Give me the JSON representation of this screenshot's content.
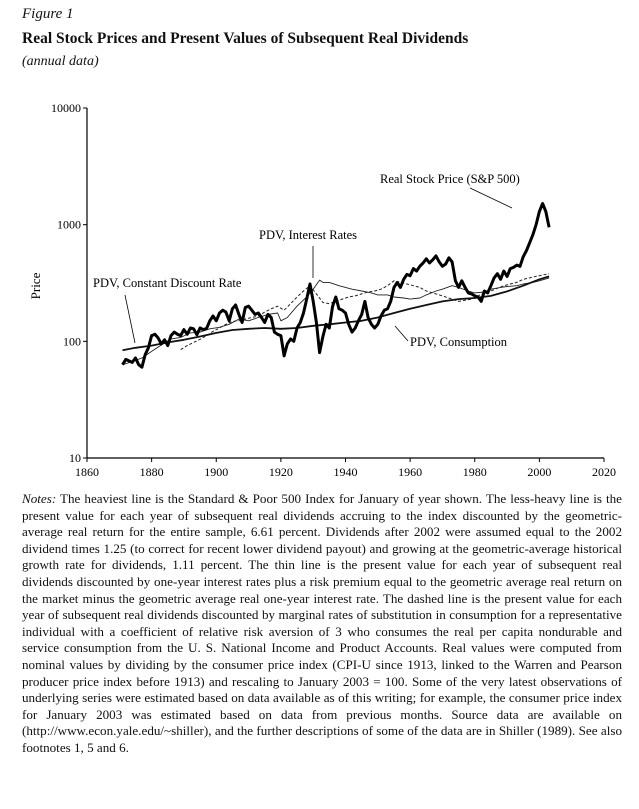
{
  "figure": {
    "label": "Figure 1",
    "title": "Real Stock Prices and Present Values of Subsequent Real Dividends",
    "subtitle": "(annual data)"
  },
  "chart_data": {
    "type": "line",
    "y_scale": "log",
    "xlim": [
      1860,
      2020
    ],
    "ylim": [
      10,
      10000
    ],
    "x_ticks": [
      "1860",
      "1880",
      "1900",
      "1920",
      "1940",
      "1960",
      "1980",
      "2000",
      "2020"
    ],
    "y_ticks": [
      "10",
      "100",
      "1000",
      "10000"
    ],
    "ylabel": "Price",
    "xlabel": "",
    "grid": false,
    "legend": "none",
    "annotations": [
      {
        "text": "Real Stock Price (S&P 500)",
        "series": "Real Stock Price (S&P 500)"
      },
      {
        "text": "PDV, Interest Rates",
        "series": "PDV, Interest Rates"
      },
      {
        "text": "PDV, Constant Discount Rate",
        "series": "PDV, Constant Discount Rate"
      },
      {
        "text": "PDV, Consumption",
        "series": "PDV, Consumption"
      }
    ],
    "series": [
      {
        "name": "Real Stock Price (S&P 500)",
        "style": "heaviest",
        "x": [
          1871,
          1872,
          1873,
          1874,
          1875,
          1876,
          1877,
          1878,
          1879,
          1880,
          1881,
          1882,
          1883,
          1884,
          1885,
          1886,
          1887,
          1888,
          1889,
          1890,
          1891,
          1892,
          1893,
          1894,
          1895,
          1896,
          1897,
          1898,
          1899,
          1900,
          1901,
          1902,
          1903,
          1904,
          1905,
          1906,
          1907,
          1908,
          1909,
          1910,
          1911,
          1912,
          1913,
          1914,
          1915,
          1916,
          1917,
          1918,
          1919,
          1920,
          1921,
          1922,
          1923,
          1924,
          1925,
          1926,
          1927,
          1928,
          1929,
          1930,
          1931,
          1932,
          1933,
          1934,
          1935,
          1936,
          1937,
          1938,
          1939,
          1940,
          1941,
          1942,
          1943,
          1944,
          1945,
          1946,
          1947,
          1948,
          1949,
          1950,
          1951,
          1952,
          1953,
          1954,
          1955,
          1956,
          1957,
          1958,
          1959,
          1960,
          1961,
          1962,
          1963,
          1964,
          1965,
          1966,
          1967,
          1968,
          1969,
          1970,
          1971,
          1972,
          1973,
          1974,
          1975,
          1976,
          1977,
          1978,
          1979,
          1980,
          1981,
          1982,
          1983,
          1984,
          1985,
          1986,
          1987,
          1988,
          1989,
          1990,
          1991,
          1992,
          1993,
          1994,
          1995,
          1996,
          1997,
          1998,
          1999,
          2000,
          2001,
          2002,
          2003
        ],
        "y": [
          63,
          70,
          68,
          66,
          72,
          63,
          60,
          77,
          88,
          112,
          115,
          107,
          95,
          103,
          92,
          112,
          120,
          115,
          112,
          126,
          115,
          130,
          128,
          114,
          130,
          126,
          129,
          150,
          165,
          150,
          175,
          185,
          178,
          150,
          190,
          205,
          170,
          145,
          195,
          200,
          185,
          170,
          175,
          160,
          145,
          170,
          160,
          120,
          115,
          112,
          75,
          95,
          105,
          100,
          130,
          145,
          175,
          230,
          310,
          220,
          145,
          80,
          110,
          140,
          130,
          200,
          240,
          190,
          185,
          175,
          140,
          120,
          130,
          150,
          170,
          220,
          160,
          140,
          130,
          140,
          165,
          185,
          190,
          220,
          290,
          320,
          290,
          340,
          375,
          365,
          420,
          400,
          440,
          470,
          510,
          470,
          500,
          540,
          480,
          440,
          460,
          520,
          480,
          330,
          290,
          330,
          290,
          260,
          255,
          245,
          240,
          220,
          270,
          260,
          300,
          350,
          380,
          340,
          400,
          360,
          420,
          430,
          450,
          440,
          530,
          600,
          700,
          820,
          1000,
          1300,
          1520,
          1300,
          950
        ]
      },
      {
        "name": "PDV, Constant Discount Rate",
        "style": "less-heavy",
        "x": [
          1871,
          1875,
          1880,
          1885,
          1890,
          1895,
          1900,
          1905,
          1910,
          1915,
          1920,
          1925,
          1930,
          1935,
          1940,
          1945,
          1950,
          1955,
          1960,
          1965,
          1970,
          1975,
          1980,
          1985,
          1990,
          1995,
          2000,
          2003
        ],
        "y": [
          84,
          88,
          92,
          98,
          103,
          110,
          118,
          125,
          128,
          130,
          128,
          130,
          136,
          140,
          145,
          150,
          160,
          175,
          190,
          205,
          220,
          230,
          235,
          245,
          268,
          300,
          340,
          360
        ]
      },
      {
        "name": "PDV, Interest Rates",
        "style": "thin",
        "x": [
          1871,
          1874,
          1877,
          1880,
          1883,
          1886,
          1889,
          1892,
          1895,
          1898,
          1901,
          1904,
          1907,
          1910,
          1913,
          1916,
          1919,
          1920,
          1922,
          1925,
          1928,
          1930,
          1932,
          1933,
          1935,
          1938,
          1940,
          1942,
          1945,
          1948,
          1950,
          1953,
          1955,
          1958,
          1960,
          1963,
          1965,
          1968,
          1970,
          1973,
          1975,
          1978,
          1980,
          1983,
          1985,
          1988,
          1990,
          1993,
          1995,
          1998,
          2000,
          2003
        ],
        "y": [
          63,
          67,
          72,
          82,
          93,
          105,
          108,
          118,
          120,
          128,
          132,
          140,
          155,
          150,
          160,
          170,
          175,
          150,
          160,
          200,
          240,
          280,
          335,
          320,
          320,
          300,
          290,
          280,
          270,
          260,
          250,
          250,
          240,
          235,
          230,
          235,
          250,
          270,
          280,
          300,
          290,
          270,
          260,
          265,
          280,
          290,
          295,
          300,
          310,
          320,
          330,
          350
        ]
      },
      {
        "name": "PDV, Consumption",
        "style": "dashed",
        "x": [
          1889,
          1891,
          1893,
          1895,
          1897,
          1899,
          1901,
          1903,
          1905,
          1907,
          1909,
          1911,
          1913,
          1915,
          1917,
          1919,
          1921,
          1923,
          1925,
          1927,
          1929,
          1931,
          1933,
          1935,
          1937,
          1939,
          1941,
          1943,
          1945,
          1947,
          1949,
          1951,
          1953,
          1955,
          1957,
          1959,
          1961,
          1963,
          1965,
          1967,
          1969,
          1971,
          1973,
          1975,
          1977,
          1979,
          1981,
          1983,
          1985,
          1987,
          1989,
          1991,
          1993,
          1995,
          1997,
          1999,
          2001,
          2003
        ],
        "y": [
          85,
          92,
          98,
          104,
          112,
          122,
          130,
          140,
          148,
          150,
          155,
          160,
          165,
          178,
          190,
          200,
          185,
          210,
          240,
          270,
          300,
          255,
          215,
          210,
          220,
          230,
          240,
          245,
          255,
          265,
          270,
          280,
          300,
          330,
          320,
          310,
          300,
          290,
          270,
          260,
          250,
          240,
          230,
          220,
          225,
          230,
          245,
          260,
          270,
          285,
          300,
          310,
          320,
          340,
          350,
          360,
          370,
          380
        ]
      }
    ]
  },
  "notes": {
    "lead": "Notes:",
    "body": " The heaviest line is the Standard & Poor 500 Index for January of year shown. The less-heavy line is the present value for each year of subsequent real dividends accruing to the index discounted by the geometric-average real return for the entire sample, 6.61 percent. Dividends after 2002 were assumed equal to the 2002 dividend times 1.25 (to correct for recent lower dividend payout) and growing at the geometric-average historical growth rate for dividends, 1.11 percent. The thin line is the present value for each year of subsequent real dividends discounted by one-year interest rates plus a risk premium equal to the geometric average real return on the market minus the geometric average real one-year interest rate. The dashed line is the present value for each year of subsequent real dividends discounted by marginal rates of substitution in consumption for a representative individual with a coefficient of relative risk aversion of 3 who consumes the real per capita nondurable and service consumption from the U. S. National Income and Product Accounts. Real values were computed from nominal values by dividing by the consumer price index (CPI-U since 1913, linked to the Warren and Pearson producer price index before 1913) and rescaling to January 2003 = 100. Some of the very latest observations of underlying series were estimated based on data available as of this writing; for example, the consumer price index for January 2003 was estimated based on data from previous months. Source data are available on (http://www.econ.yale.edu/~shiller), and the further descriptions of some of the data are in Shiller (1989). See also footnotes 1, 5 and 6."
  }
}
